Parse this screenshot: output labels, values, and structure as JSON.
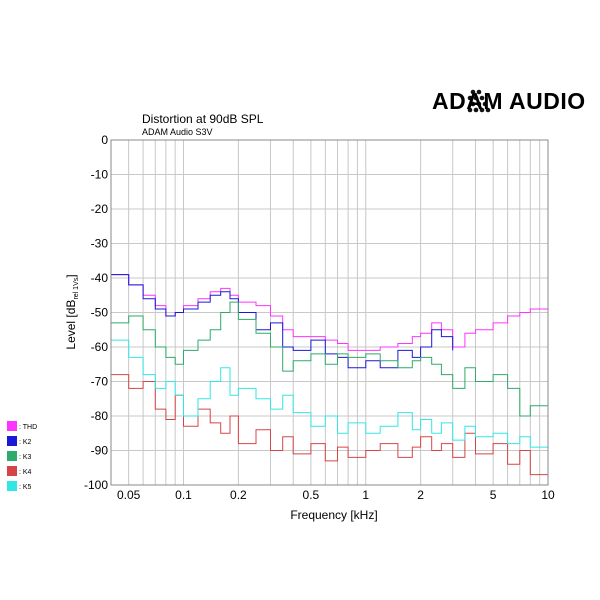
{
  "brand": {
    "logo_text": "ADAM AUDIO"
  },
  "chart_data": {
    "type": "line",
    "title": "Distortion at 90dB SPL",
    "subtitle": "ADAM Audio S3V",
    "xlabel": "Frequency [kHz]",
    "ylabel_main": "Level [dB",
    "ylabel_sub": "rel 1Vs",
    "ylabel_end": "]",
    "x_scale": "log",
    "xlim": [
      0.04,
      10
    ],
    "ylim": [
      -100,
      0
    ],
    "grid": true,
    "legend_position": "left",
    "x_ticks": [
      {
        "value": 0.05,
        "label": "0.05"
      },
      {
        "value": 0.1,
        "label": "0.1"
      },
      {
        "value": 0.2,
        "label": "0.2"
      },
      {
        "value": 0.5,
        "label": "0.5"
      },
      {
        "value": 1,
        "label": "1"
      },
      {
        "value": 2,
        "label": "2"
      },
      {
        "value": 5,
        "label": "5"
      },
      {
        "value": 10,
        "label": "10"
      }
    ],
    "y_ticks": [
      {
        "value": 0,
        "label": "0"
      },
      {
        "value": -10,
        "label": "-10"
      },
      {
        "value": -20,
        "label": "-20"
      },
      {
        "value": -30,
        "label": "-30"
      },
      {
        "value": -40,
        "label": "-40"
      },
      {
        "value": -50,
        "label": "-50"
      },
      {
        "value": -60,
        "label": "-60"
      },
      {
        "value": -70,
        "label": "-70"
      },
      {
        "value": -80,
        "label": "-80"
      },
      {
        "value": -90,
        "label": "-90"
      },
      {
        "value": -100,
        "label": "-100"
      }
    ],
    "series": [
      {
        "name": ": THD",
        "color": "#ff33ff",
        "x": [
          0.04,
          0.05,
          0.06,
          0.07,
          0.08,
          0.09,
          0.1,
          0.12,
          0.14,
          0.16,
          0.18,
          0.2,
          0.25,
          0.3,
          0.35,
          0.4,
          0.5,
          0.6,
          0.7,
          0.8,
          1,
          1.2,
          1.5,
          1.8,
          2,
          2.3,
          2.6,
          3,
          3.5,
          4,
          5,
          6,
          7,
          8,
          10
        ],
        "y": [
          -39,
          -42,
          -45,
          -48,
          -51,
          -50,
          -48,
          -46,
          -44,
          -43,
          -45,
          -47,
          -48,
          -51,
          -55,
          -57,
          -57,
          -58,
          -59,
          -61,
          -61,
          -60,
          -59,
          -57,
          -56,
          -53,
          -55,
          -60,
          -56,
          -55,
          -53,
          -51,
          -50,
          -49,
          -46
        ]
      },
      {
        "name": ": K2",
        "color": "#1a1ad6",
        "x": [
          0.04,
          0.05,
          0.06,
          0.07,
          0.08,
          0.09,
          0.1,
          0.12,
          0.14,
          0.16,
          0.18,
          0.2,
          0.25,
          0.3,
          0.35,
          0.4,
          0.5,
          0.6,
          0.7,
          0.8,
          1,
          1.2,
          1.5,
          1.8,
          2,
          2.3,
          2.6,
          3
        ],
        "y": [
          -39,
          -42,
          -46,
          -49,
          -51,
          -50,
          -49,
          -47,
          -45,
          -44,
          -46,
          -50,
          -55,
          -53,
          -60,
          -61,
          -58,
          -62,
          -63,
          -66,
          -64,
          -66,
          -61,
          -63,
          -60,
          -55,
          -57,
          -61
        ]
      },
      {
        "name": ": K3",
        "color": "#2eaa6a",
        "x": [
          0.04,
          0.05,
          0.06,
          0.07,
          0.08,
          0.09,
          0.1,
          0.12,
          0.14,
          0.16,
          0.18,
          0.2,
          0.25,
          0.3,
          0.35,
          0.4,
          0.5,
          0.6,
          0.7,
          0.8,
          1,
          1.2,
          1.5,
          1.8,
          2,
          2.3,
          2.6,
          3,
          3.5,
          4,
          5,
          6,
          7,
          8,
          10
        ],
        "y": [
          -53,
          -51,
          -55,
          -60,
          -63,
          -65,
          -61,
          -58,
          -55,
          -50,
          -47,
          -52,
          -56,
          -60,
          -67,
          -64,
          -62,
          -65,
          -62,
          -63,
          -62,
          -64,
          -66,
          -64,
          -63,
          -65,
          -68,
          -72,
          -66,
          -70,
          -68,
          -72,
          -80,
          -77,
          -82
        ]
      },
      {
        "name": ": K4",
        "color": "#d64545",
        "x": [
          0.04,
          0.05,
          0.06,
          0.07,
          0.08,
          0.09,
          0.1,
          0.12,
          0.14,
          0.16,
          0.18,
          0.2,
          0.25,
          0.3,
          0.35,
          0.4,
          0.5,
          0.6,
          0.7,
          0.8,
          1,
          1.2,
          1.5,
          1.8,
          2,
          2.3,
          2.6,
          3,
          3.5,
          4,
          5,
          6,
          7,
          8,
          10
        ],
        "y": [
          -68,
          -72,
          -70,
          -78,
          -81,
          -74,
          -83,
          -78,
          -82,
          -85,
          -80,
          -88,
          -84,
          -90,
          -86,
          -91,
          -88,
          -93,
          -89,
          -92,
          -90,
          -88,
          -92,
          -89,
          -86,
          -90,
          -88,
          -92,
          -85,
          -91,
          -88,
          -94,
          -90,
          -97,
          -92
        ]
      },
      {
        "name": ": K5",
        "color": "#33e6e6",
        "x": [
          0.04,
          0.05,
          0.06,
          0.07,
          0.08,
          0.09,
          0.1,
          0.12,
          0.14,
          0.16,
          0.18,
          0.2,
          0.25,
          0.3,
          0.35,
          0.4,
          0.5,
          0.6,
          0.7,
          0.8,
          1,
          1.2,
          1.5,
          1.8,
          2,
          2.3,
          2.6,
          3,
          3.5,
          4,
          5,
          6,
          7,
          8,
          10
        ],
        "y": [
          -58,
          -63,
          -68,
          -72,
          -70,
          -74,
          -80,
          -75,
          -70,
          -66,
          -74,
          -72,
          -75,
          -78,
          -74,
          -79,
          -83,
          -80,
          -85,
          -82,
          -85,
          -83,
          -79,
          -84,
          -81,
          -85,
          -82,
          -87,
          -83,
          -86,
          -85,
          -88,
          -86,
          -89,
          -90
        ]
      }
    ]
  }
}
